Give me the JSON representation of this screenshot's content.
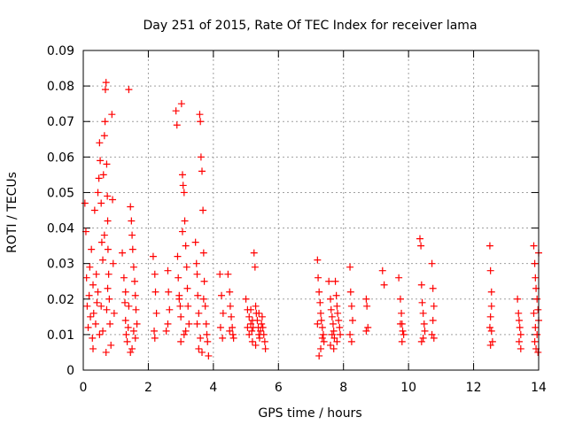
{
  "chart_data": {
    "type": "scatter",
    "title": "Day 251 of 2015, Rate Of TEC Index for receiver lama",
    "xlabel": "GPS time / hours",
    "ylabel": "ROTI / TECUs",
    "xlim": [
      0,
      14
    ],
    "ylim": [
      0,
      0.09
    ],
    "xticks": [
      0,
      2,
      4,
      6,
      8,
      10,
      12,
      14
    ],
    "yticks": [
      0,
      0.01,
      0.02,
      0.03,
      0.04,
      0.05,
      0.06,
      0.07,
      0.08,
      0.09
    ],
    "xtick_labels": [
      "0",
      "2",
      "4",
      "6",
      "8",
      "10",
      "12",
      "14"
    ],
    "ytick_labels": [
      "0",
      "0.01",
      "0.02",
      "0.03",
      "0.04",
      "0.05",
      "0.06",
      "0.07",
      "0.08",
      "0.09"
    ],
    "grid": true,
    "marker": "plus",
    "color": "#ff0000",
    "series": [
      {
        "name": "ROTI",
        "points": [
          [
            0.05,
            0.047
          ],
          [
            0.08,
            0.039
          ],
          [
            0.1,
            0.026
          ],
          [
            0.12,
            0.018
          ],
          [
            0.15,
            0.012
          ],
          [
            0.18,
            0.021
          ],
          [
            0.2,
            0.029
          ],
          [
            0.22,
            0.015
          ],
          [
            0.25,
            0.034
          ],
          [
            0.28,
            0.009
          ],
          [
            0.3,
            0.024
          ],
          [
            0.32,
            0.016
          ],
          [
            0.35,
            0.045
          ],
          [
            0.38,
            0.013
          ],
          [
            0.4,
            0.027
          ],
          [
            0.42,
            0.019
          ],
          [
            0.45,
            0.05
          ],
          [
            0.48,
            0.054
          ],
          [
            0.5,
            0.064
          ],
          [
            0.52,
            0.059
          ],
          [
            0.55,
            0.047
          ],
          [
            0.57,
            0.036
          ],
          [
            0.6,
            0.031
          ],
          [
            0.62,
            0.055
          ],
          [
            0.65,
            0.066
          ],
          [
            0.67,
            0.07
          ],
          [
            0.68,
            0.079
          ],
          [
            0.7,
            0.081
          ],
          [
            0.72,
            0.058
          ],
          [
            0.74,
            0.049
          ],
          [
            0.75,
            0.042
          ],
          [
            0.76,
            0.034
          ],
          [
            0.78,
            0.027
          ],
          [
            0.8,
            0.02
          ],
          [
            0.82,
            0.013
          ],
          [
            0.85,
            0.007
          ],
          [
            0.6,
            0.011
          ],
          [
            0.7,
            0.005
          ],
          [
            0.72,
            0.017
          ],
          [
            0.75,
            0.023
          ],
          [
            0.65,
            0.038
          ],
          [
            0.55,
            0.018
          ],
          [
            0.45,
            0.022
          ],
          [
            0.88,
            0.072
          ],
          [
            0.9,
            0.048
          ],
          [
            0.92,
            0.03
          ],
          [
            0.95,
            0.016
          ],
          [
            0.5,
            0.01
          ],
          [
            0.3,
            0.006
          ],
          [
            1.2,
            0.033
          ],
          [
            1.25,
            0.026
          ],
          [
            1.28,
            0.019
          ],
          [
            1.3,
            0.014
          ],
          [
            1.32,
            0.01
          ],
          [
            1.35,
            0.008
          ],
          [
            1.38,
            0.012
          ],
          [
            1.4,
            0.079
          ],
          [
            1.45,
            0.046
          ],
          [
            1.48,
            0.042
          ],
          [
            1.5,
            0.038
          ],
          [
            1.52,
            0.034
          ],
          [
            1.55,
            0.029
          ],
          [
            1.58,
            0.025
          ],
          [
            1.6,
            0.021
          ],
          [
            1.62,
            0.017
          ],
          [
            1.65,
            0.013
          ],
          [
            1.55,
            0.011
          ],
          [
            1.5,
            0.006
          ],
          [
            1.45,
            0.005
          ],
          [
            1.6,
            0.009
          ],
          [
            1.4,
            0.018
          ],
          [
            1.3,
            0.022
          ],
          [
            2.15,
            0.032
          ],
          [
            2.2,
            0.027
          ],
          [
            2.22,
            0.022
          ],
          [
            2.25,
            0.016
          ],
          [
            2.18,
            0.011
          ],
          [
            2.2,
            0.009
          ],
          [
            2.6,
            0.028
          ],
          [
            2.62,
            0.022
          ],
          [
            2.65,
            0.017
          ],
          [
            2.6,
            0.013
          ],
          [
            2.55,
            0.011
          ],
          [
            2.85,
            0.073
          ],
          [
            2.88,
            0.069
          ],
          [
            2.9,
            0.032
          ],
          [
            2.92,
            0.026
          ],
          [
            2.95,
            0.021
          ],
          [
            2.98,
            0.018
          ],
          [
            3.0,
            0.015
          ],
          [
            3.02,
            0.075
          ],
          [
            3.05,
            0.055
          ],
          [
            3.07,
            0.052
          ],
          [
            3.1,
            0.05
          ],
          [
            3.12,
            0.042
          ],
          [
            3.15,
            0.035
          ],
          [
            3.18,
            0.029
          ],
          [
            3.2,
            0.023
          ],
          [
            3.22,
            0.018
          ],
          [
            3.25,
            0.013
          ],
          [
            3.1,
            0.01
          ],
          [
            3.0,
            0.008
          ],
          [
            3.15,
            0.011
          ],
          [
            3.05,
            0.039
          ],
          [
            2.95,
            0.02
          ],
          [
            3.45,
            0.036
          ],
          [
            3.48,
            0.03
          ],
          [
            3.5,
            0.027
          ],
          [
            3.52,
            0.021
          ],
          [
            3.55,
            0.016
          ],
          [
            3.58,
            0.072
          ],
          [
            3.6,
            0.07
          ],
          [
            3.62,
            0.06
          ],
          [
            3.65,
            0.056
          ],
          [
            3.68,
            0.045
          ],
          [
            3.7,
            0.033
          ],
          [
            3.72,
            0.025
          ],
          [
            3.75,
            0.018
          ],
          [
            3.78,
            0.013
          ],
          [
            3.8,
            0.01
          ],
          [
            3.82,
            0.008
          ],
          [
            3.6,
            0.009
          ],
          [
            3.55,
            0.006
          ],
          [
            3.65,
            0.005
          ],
          [
            3.85,
            0.004
          ],
          [
            3.5,
            0.013
          ],
          [
            3.7,
            0.02
          ],
          [
            4.2,
            0.027
          ],
          [
            4.25,
            0.021
          ],
          [
            4.3,
            0.016
          ],
          [
            4.22,
            0.012
          ],
          [
            4.28,
            0.009
          ],
          [
            4.45,
            0.027
          ],
          [
            4.5,
            0.022
          ],
          [
            4.52,
            0.018
          ],
          [
            4.55,
            0.015
          ],
          [
            4.58,
            0.012
          ],
          [
            4.6,
            0.01
          ],
          [
            4.62,
            0.009
          ],
          [
            4.5,
            0.011
          ],
          [
            5.0,
            0.02
          ],
          [
            5.05,
            0.017
          ],
          [
            5.1,
            0.015
          ],
          [
            5.15,
            0.013
          ],
          [
            5.18,
            0.011
          ],
          [
            5.2,
            0.014
          ],
          [
            5.22,
            0.012
          ],
          [
            5.25,
            0.033
          ],
          [
            5.28,
            0.029
          ],
          [
            5.3,
            0.018
          ],
          [
            5.32,
            0.016
          ],
          [
            5.35,
            0.014
          ],
          [
            5.38,
            0.012
          ],
          [
            5.4,
            0.01
          ],
          [
            5.42,
            0.009
          ],
          [
            5.45,
            0.011
          ],
          [
            5.48,
            0.013
          ],
          [
            5.5,
            0.015
          ],
          [
            5.52,
            0.012
          ],
          [
            5.55,
            0.01
          ],
          [
            5.58,
            0.008
          ],
          [
            5.6,
            0.006
          ],
          [
            5.1,
            0.01
          ],
          [
            5.2,
            0.008
          ],
          [
            5.3,
            0.007
          ],
          [
            5.4,
            0.016
          ],
          [
            5.15,
            0.017
          ],
          [
            5.05,
            0.012
          ],
          [
            7.2,
            0.031
          ],
          [
            7.22,
            0.026
          ],
          [
            7.25,
            0.022
          ],
          [
            7.28,
            0.019
          ],
          [
            7.3,
            0.016
          ],
          [
            7.32,
            0.014
          ],
          [
            7.35,
            0.012
          ],
          [
            7.38,
            0.01
          ],
          [
            7.4,
            0.008
          ],
          [
            7.3,
            0.006
          ],
          [
            7.25,
            0.004
          ],
          [
            7.35,
            0.009
          ],
          [
            7.2,
            0.013
          ],
          [
            7.55,
            0.025
          ],
          [
            7.6,
            0.02
          ],
          [
            7.62,
            0.017
          ],
          [
            7.65,
            0.015
          ],
          [
            7.68,
            0.013
          ],
          [
            7.7,
            0.011
          ],
          [
            7.72,
            0.009
          ],
          [
            7.75,
            0.025
          ],
          [
            7.78,
            0.021
          ],
          [
            7.8,
            0.018
          ],
          [
            7.82,
            0.016
          ],
          [
            7.85,
            0.014
          ],
          [
            7.88,
            0.012
          ],
          [
            7.6,
            0.007
          ],
          [
            7.7,
            0.006
          ],
          [
            7.8,
            0.008
          ],
          [
            7.9,
            0.01
          ],
          [
            7.65,
            0.01
          ],
          [
            8.2,
            0.029
          ],
          [
            8.22,
            0.022
          ],
          [
            8.25,
            0.018
          ],
          [
            8.28,
            0.014
          ],
          [
            8.2,
            0.01
          ],
          [
            8.25,
            0.008
          ],
          [
            8.7,
            0.02
          ],
          [
            8.72,
            0.018
          ],
          [
            8.75,
            0.012
          ],
          [
            8.7,
            0.011
          ],
          [
            9.2,
            0.028
          ],
          [
            9.25,
            0.024
          ],
          [
            9.7,
            0.026
          ],
          [
            9.75,
            0.02
          ],
          [
            9.78,
            0.016
          ],
          [
            9.8,
            0.013
          ],
          [
            9.82,
            0.011
          ],
          [
            9.85,
            0.01
          ],
          [
            9.8,
            0.008
          ],
          [
            9.75,
            0.013
          ],
          [
            10.35,
            0.037
          ],
          [
            10.38,
            0.035
          ],
          [
            10.4,
            0.024
          ],
          [
            10.42,
            0.019
          ],
          [
            10.45,
            0.016
          ],
          [
            10.48,
            0.013
          ],
          [
            10.5,
            0.011
          ],
          [
            10.45,
            0.009
          ],
          [
            10.4,
            0.008
          ],
          [
            10.72,
            0.03
          ],
          [
            10.75,
            0.023
          ],
          [
            10.78,
            0.018
          ],
          [
            10.75,
            0.014
          ],
          [
            10.72,
            0.01
          ],
          [
            10.78,
            0.009
          ],
          [
            12.5,
            0.035
          ],
          [
            12.52,
            0.028
          ],
          [
            12.55,
            0.022
          ],
          [
            12.55,
            0.018
          ],
          [
            12.52,
            0.015
          ],
          [
            12.5,
            0.012
          ],
          [
            12.55,
            0.011
          ],
          [
            12.58,
            0.008
          ],
          [
            12.52,
            0.007
          ],
          [
            13.35,
            0.02
          ],
          [
            13.38,
            0.016
          ],
          [
            13.4,
            0.014
          ],
          [
            13.42,
            0.012
          ],
          [
            13.45,
            0.01
          ],
          [
            13.4,
            0.008
          ],
          [
            13.45,
            0.006
          ],
          [
            13.85,
            0.035
          ],
          [
            13.88,
            0.03
          ],
          [
            13.9,
            0.026
          ],
          [
            13.92,
            0.023
          ],
          [
            13.95,
            0.02
          ],
          [
            13.98,
            0.017
          ],
          [
            14.0,
            0.014
          ],
          [
            13.9,
            0.012
          ],
          [
            13.95,
            0.01
          ],
          [
            13.88,
            0.008
          ],
          [
            13.92,
            0.006
          ],
          [
            13.98,
            0.005
          ],
          [
            14.0,
            0.033
          ],
          [
            13.85,
            0.016
          ]
        ]
      }
    ]
  }
}
